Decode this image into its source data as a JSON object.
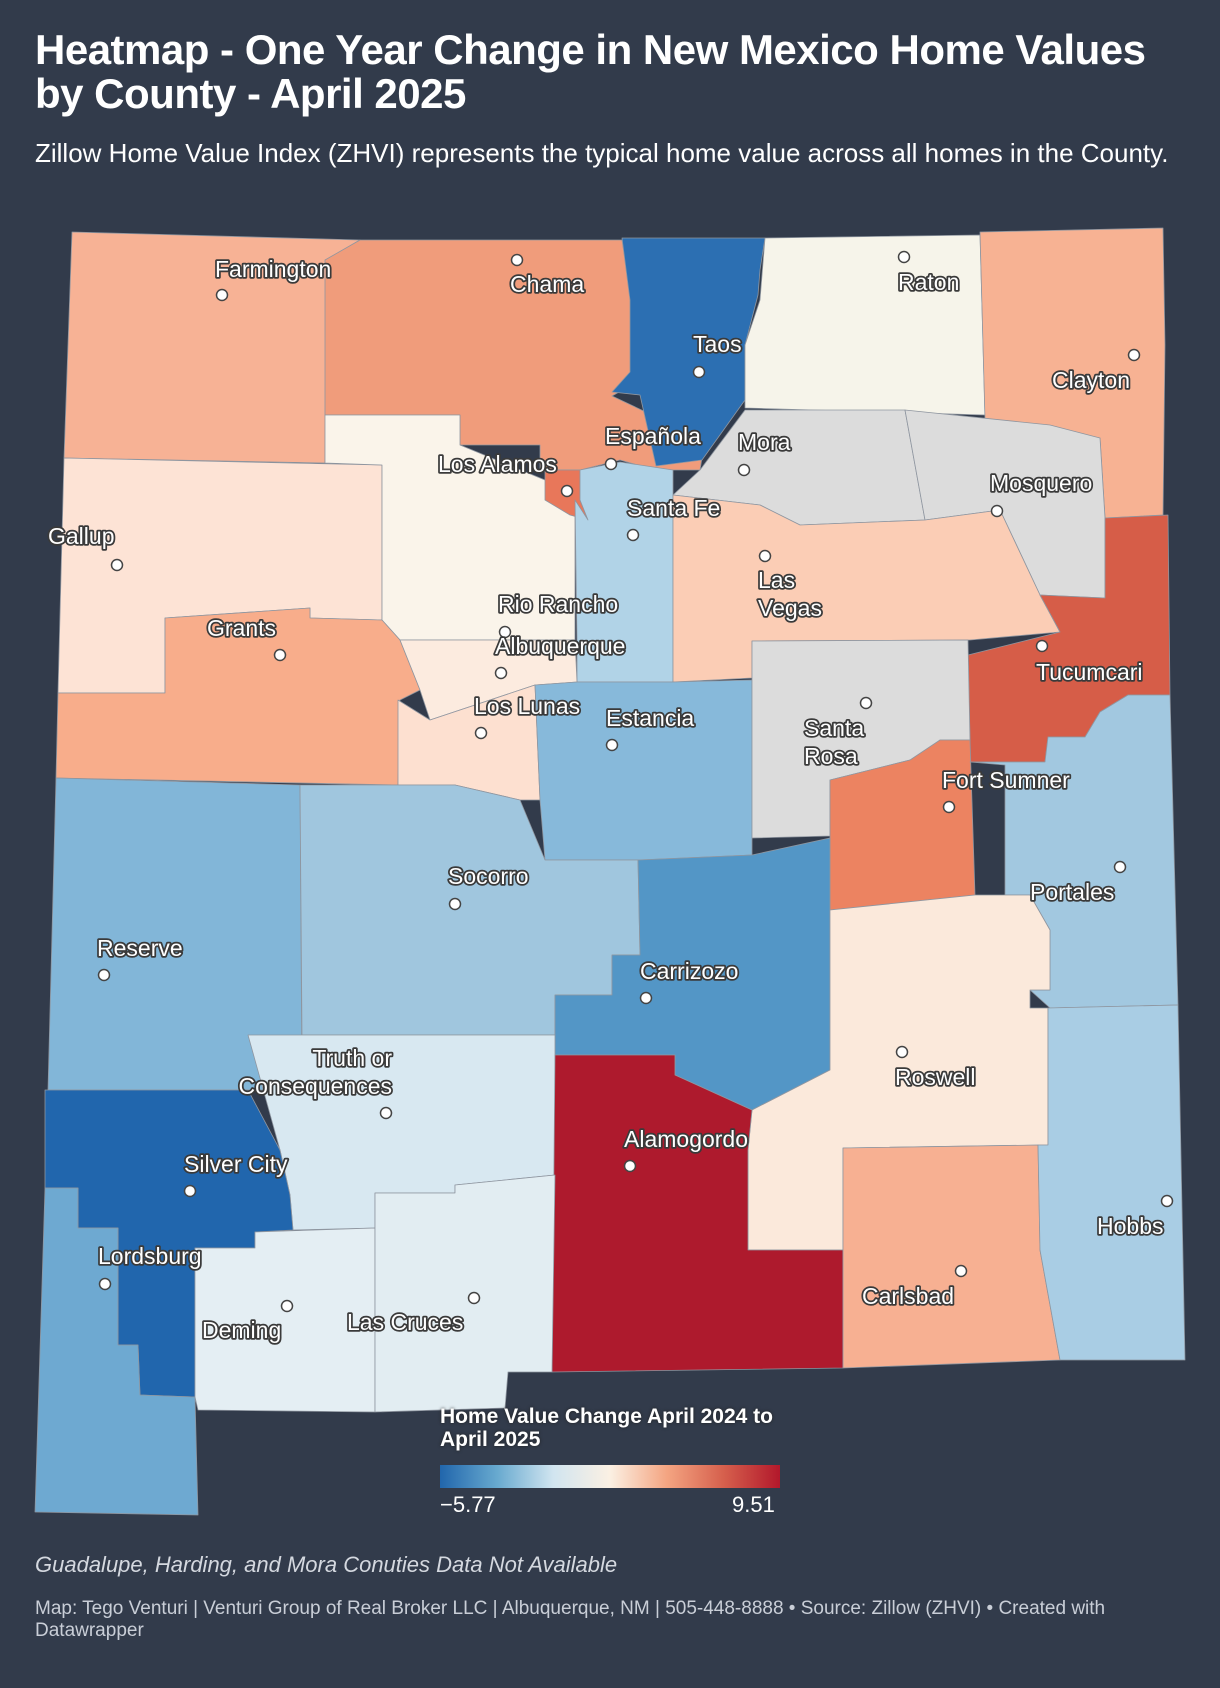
{
  "title": "Heatmap - One Year Change in New Mexico Home Values by County - April 2025",
  "subtitle": "Zillow Home Value Index (ZHVI) represents the typical home value across all homes in the County.",
  "legend": {
    "title": "Home Value Change April 2024 to April 2025",
    "min_label": "−5.77",
    "max_label": "9.51",
    "min": -5.77,
    "max": 9.51,
    "colors": [
      "#2166ac",
      "#67a9cf",
      "#d1e5f0",
      "#fbf0e3",
      "#f4a582",
      "#d6604d",
      "#b2182b"
    ]
  },
  "cities": [
    {
      "name": "Farmington"
    },
    {
      "name": "Chama"
    },
    {
      "name": "Taos"
    },
    {
      "name": "Raton"
    },
    {
      "name": "Clayton"
    },
    {
      "name": "Española"
    },
    {
      "name": "Los Alamos"
    },
    {
      "name": "Mora"
    },
    {
      "name": "Mosquero"
    },
    {
      "name": "Santa Fe"
    },
    {
      "name": "Gallup"
    },
    {
      "name": "Las Vegas"
    },
    {
      "name": "Rio Rancho"
    },
    {
      "name": "Albuquerque"
    },
    {
      "name": "Grants"
    },
    {
      "name": "Tucumcari"
    },
    {
      "name": "Los Lunas"
    },
    {
      "name": "Estancia"
    },
    {
      "name": "Santa Rosa"
    },
    {
      "name": "Fort Sumner"
    },
    {
      "name": "Socorro"
    },
    {
      "name": "Portales"
    },
    {
      "name": "Reserve"
    },
    {
      "name": "Carrizozo"
    },
    {
      "name": "Truth or Consequences"
    },
    {
      "name": "Roswell"
    },
    {
      "name": "Alamogordo"
    },
    {
      "name": "Silver City"
    },
    {
      "name": "Hobbs"
    },
    {
      "name": "Lordsburg"
    },
    {
      "name": "Deming"
    },
    {
      "name": "Las Cruces"
    },
    {
      "name": "Carlsbad"
    }
  ],
  "note": "Guadalupe, Harding, and Mora Conuties Data Not Available",
  "footer": "Map: Tego Venturi | Venturi Group of Real Broker LLC | Albuquerque, NM | 505-448-8888 • Source: Zillow (ZHVI) • Created with Datawrapper"
}
